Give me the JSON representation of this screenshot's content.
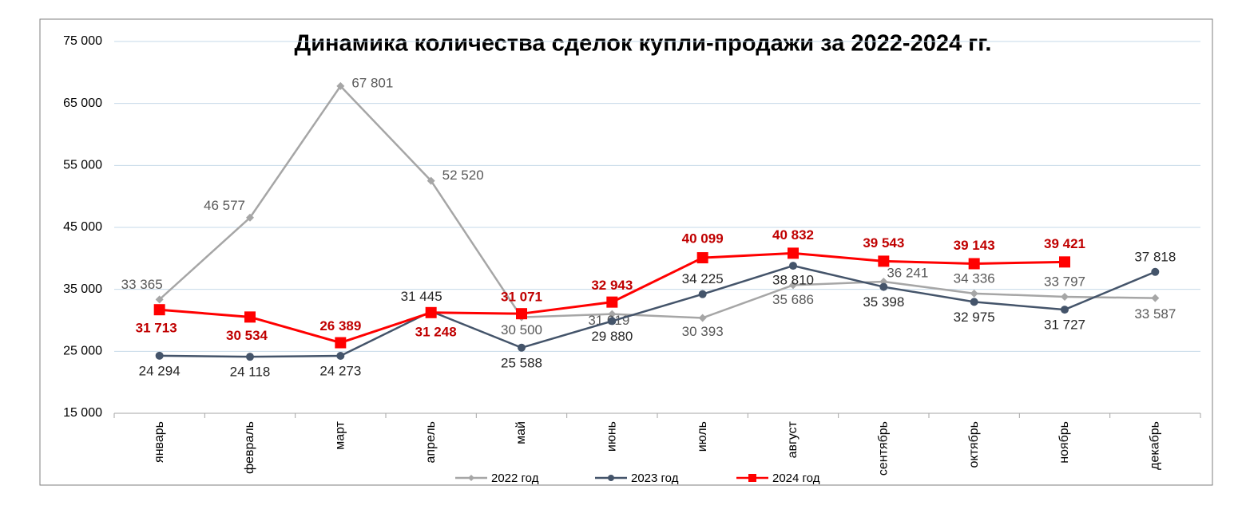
{
  "chart_data": {
    "type": "line",
    "title": "Динамика количества сделок купли-продажи за 2022-2024 гг.",
    "categories": [
      "январь",
      "февраль",
      "март",
      "апрель",
      "май",
      "июнь",
      "июль",
      "август",
      "сентябрь",
      "октябрь",
      "ноябрь",
      "декабрь"
    ],
    "ylim": [
      15000,
      75000
    ],
    "yticks": [
      {
        "value": 15000,
        "label": "15 000"
      },
      {
        "value": 25000,
        "label": "25 000"
      },
      {
        "value": 35000,
        "label": "35 000"
      },
      {
        "value": 45000,
        "label": "45 000"
      },
      {
        "value": 55000,
        "label": "55 000"
      },
      {
        "value": 65000,
        "label": "65 000"
      },
      {
        "value": 75000,
        "label": "75 000"
      }
    ],
    "grid": true,
    "legend": "bottom",
    "series": [
      {
        "name": "2022 год",
        "color": "#a6a6a6",
        "marker": "diamond",
        "values": [
          33365,
          46577,
          67801,
          52520,
          30500,
          31019,
          30393,
          35686,
          36241,
          34336,
          33797,
          33587
        ],
        "value_labels": [
          "33 365",
          "46 577",
          "67 801",
          "52 520",
          "30 500",
          "31 019",
          "30 393",
          "35 686",
          "36 241",
          "34 336",
          "33 797",
          "33 587"
        ]
      },
      {
        "name": "2023 год",
        "color": "#44546a",
        "marker": "circle",
        "values": [
          24294,
          24118,
          24273,
          31445,
          25588,
          29880,
          34225,
          38810,
          35398,
          32975,
          31727,
          37818
        ],
        "value_labels": [
          "24 294",
          "24 118",
          "24 273",
          "31 445",
          "25 588",
          "29 880",
          "34 225",
          "38 810",
          "35 398",
          "32 975",
          "31 727",
          "37 818"
        ]
      },
      {
        "name": "2024 год",
        "color": "#ff0000",
        "marker": "square",
        "values": [
          31713,
          30534,
          26389,
          31248,
          31071,
          32943,
          40099,
          40832,
          39543,
          39143,
          39421,
          null
        ],
        "value_labels": [
          "31 713",
          "30 534",
          "26 389",
          "31 248",
          "31 071",
          "32 943",
          "40 099",
          "40 832",
          "39 543",
          "39 143",
          "39 421",
          null
        ]
      }
    ]
  }
}
